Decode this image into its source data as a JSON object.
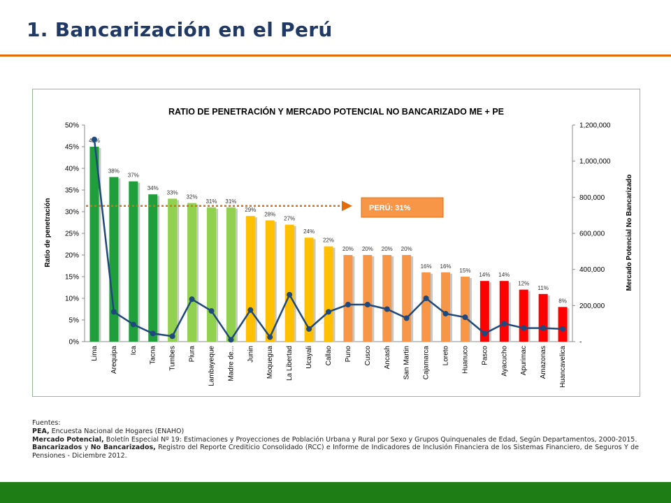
{
  "page": {
    "title": "1. Bancarización en el Perú"
  },
  "chart_data": {
    "type": "bar",
    "title": "RATIO DE PENETRACIÓN Y MERCADO POTENCIAL NO BANCARIZADO ME + PE",
    "ylabel": "Ratio de penetración",
    "y2label": "Mercado Potencial No Bancarizado",
    "ylim": [
      0,
      50
    ],
    "y2lim": [
      0,
      1200000
    ],
    "y_ticks": [
      "0%",
      "5%",
      "10%",
      "15%",
      "20%",
      "25%",
      "30%",
      "35%",
      "40%",
      "45%",
      "50%"
    ],
    "y2_ticks": [
      "-",
      "200,000",
      "400,000",
      "600,000",
      "800,000",
      "1,000,000",
      "1,200,000"
    ],
    "reference_line": {
      "label": "PERÚ: 31%",
      "value": 31
    },
    "categories": [
      "Lima",
      "Arequipa",
      "Ica",
      "Tacna",
      "Tumbes",
      "Piura",
      "Lambayeque",
      "Madre de...",
      "Junin",
      "Moquegua",
      "La Libertad",
      "Ucayali",
      "Callao",
      "Puno",
      "Cusco",
      "Ancash",
      "San Martin",
      "Cajamarca",
      "Loreto",
      "Huanuco",
      "Pasco",
      "Ayacucho",
      "Apurimac",
      "Amazonas",
      "Huancavelica"
    ],
    "series": [
      {
        "type": "bar",
        "values": [
          45,
          38,
          37,
          34,
          33,
          32,
          31,
          31,
          29,
          28,
          27,
          24,
          22,
          20,
          20,
          20,
          20,
          16,
          16,
          15,
          14,
          14,
          12,
          11,
          8
        ],
        "labels": [
          "45%",
          "38%",
          "37%",
          "34%",
          "33%",
          "32%",
          "31%",
          "31%",
          "29%",
          "28%",
          "27%",
          "24%",
          "22%",
          "20%",
          "20%",
          "20%",
          "20%",
          "16%",
          "16%",
          "15%",
          "14%",
          "14%",
          "12%",
          "11%",
          "8%"
        ],
        "colors": [
          "#1f9e3b",
          "#1f9e3b",
          "#1f9e3b",
          "#1f9e3b",
          "#92d050",
          "#92d050",
          "#92d050",
          "#92d050",
          "#ffc000",
          "#ffc000",
          "#ffc000",
          "#ffc000",
          "#ffc000",
          "#f79646",
          "#f79646",
          "#f79646",
          "#f79646",
          "#f79646",
          "#f79646",
          "#f79646",
          "#ff0000",
          "#ff0000",
          "#ff0000",
          "#ff0000",
          "#ff0000"
        ]
      },
      {
        "type": "line",
        "axis": "right",
        "color": "#1f497d",
        "values": [
          1120000,
          165000,
          95000,
          45000,
          30000,
          235000,
          170000,
          10000,
          175000,
          25000,
          260000,
          70000,
          165000,
          205000,
          205000,
          180000,
          130000,
          240000,
          155000,
          135000,
          45000,
          100000,
          75000,
          75000,
          70000
        ]
      }
    ]
  },
  "sources": {
    "heading": "Fuentes:",
    "pea_label": "PEA,",
    "pea_text": " Encuesta Nacional de Hogares (ENAHO)",
    "mercado_label": "Mercado Potencial,",
    "mercado_text": " Boletín Especial Nº 19: Estimaciones y Proyecciones de Población Urbana y Rural por Sexo y Grupos Quinquenales de Edad, Según Departamentos, 2000-2015.",
    "banc_label": "Bancarizados",
    "banc_mid": " y ",
    "nobanc_label": "No Bancarizados,",
    "banc_text": " Registro del Reporte Crediticio Consolidado (RCC) e Informe de Indicadores de Inclusión Financiera de los Sistemas Financiero, de Seguros Y de Pensiones - Diciembre 2012."
  }
}
